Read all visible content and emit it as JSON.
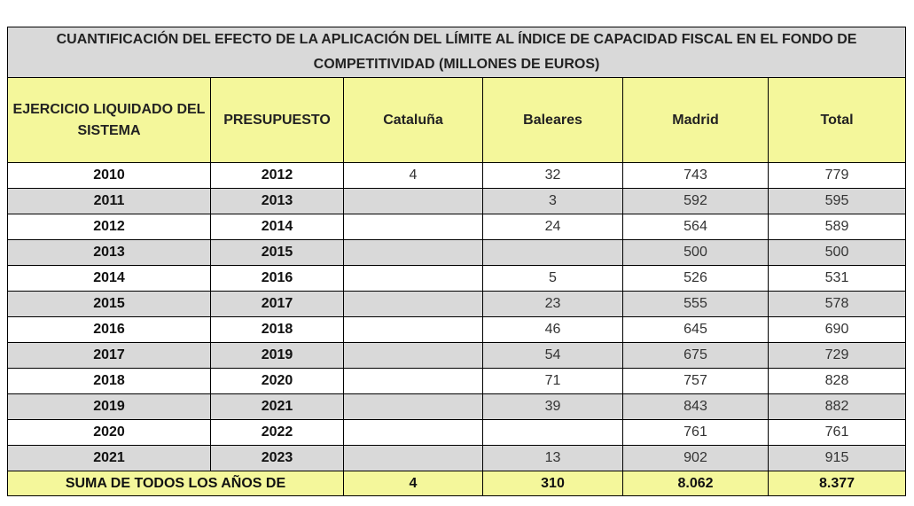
{
  "table": {
    "title": "CUANTIFICACIÓN DEL EFECTO DE LA APLICACIÓN DEL LÍMITE AL ÍNDICE DE CAPACIDAD FISCAL EN EL FONDO DE COMPETITIVIDAD (MILLONES DE EUROS)",
    "headers": [
      "EJERCICIO LIQUIDADO DEL SISTEMA",
      "PRESUPUESTO",
      "Cataluña",
      "Baleares",
      "Madrid",
      "Total"
    ],
    "rows": [
      [
        "2010",
        "2012",
        "4",
        "32",
        "743",
        "779"
      ],
      [
        "2011",
        "2013",
        null,
        "3",
        "592",
        "595"
      ],
      [
        "2012",
        "2014",
        null,
        "24",
        "564",
        "589"
      ],
      [
        "2013",
        "2015",
        null,
        null,
        "500",
        "500"
      ],
      [
        "2014",
        "2016",
        null,
        "5",
        "526",
        "531"
      ],
      [
        "2015",
        "2017",
        null,
        "23",
        "555",
        "578"
      ],
      [
        "2016",
        "2018",
        null,
        "46",
        "645",
        "690"
      ],
      [
        "2017",
        "2019",
        null,
        "54",
        "675",
        "729"
      ],
      [
        "2018",
        "2020",
        null,
        "71",
        "757",
        "828"
      ],
      [
        "2019",
        "2021",
        null,
        "39",
        "843",
        "882"
      ],
      [
        "2020",
        "2022",
        null,
        null,
        "761",
        "761"
      ],
      [
        "2021",
        "2023",
        null,
        "13",
        "902",
        "915"
      ]
    ],
    "footer": [
      "SUMA DE TODOS LOS AÑOS DE",
      "4",
      "310",
      "8.062",
      "8.377"
    ]
  }
}
